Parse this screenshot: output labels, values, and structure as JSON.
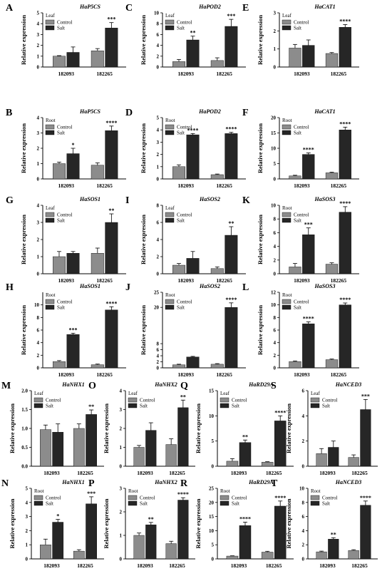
{
  "colors": {
    "control": "#8c8c8c",
    "salt": "#262626",
    "axis": "#000000"
  },
  "chart_data": [
    {
      "letter": "A",
      "type": "bar",
      "title": "HaP5CS",
      "tissue": "Leaf",
      "categories": [
        "182093",
        "182265"
      ],
      "ylabel": "Relative expression",
      "ylim": [
        0,
        5
      ],
      "yticks": [
        0,
        1,
        2,
        3,
        4,
        5
      ],
      "series": [
        {
          "name": "Control",
          "values": [
            1.0,
            1.5
          ],
          "errors": [
            0.05,
            0.2
          ]
        },
        {
          "name": "Salt",
          "values": [
            1.35,
            3.6
          ],
          "errors": [
            0.5,
            0.5
          ]
        }
      ],
      "sig": [
        "",
        "***"
      ]
    },
    {
      "letter": "C",
      "type": "bar",
      "title": "HaPOD2",
      "tissue": "Leaf",
      "categories": [
        "182093",
        "182265"
      ],
      "ylabel": "Relative expression",
      "ylim": [
        0,
        10
      ],
      "yticks": [
        0,
        2,
        4,
        6,
        8,
        10
      ],
      "series": [
        {
          "name": "Control",
          "values": [
            1.0,
            1.2
          ],
          "errors": [
            0.4,
            0.5
          ]
        },
        {
          "name": "Salt",
          "values": [
            5.0,
            7.5
          ],
          "errors": [
            0.7,
            1.3
          ]
        }
      ],
      "sig": [
        "**",
        "***"
      ]
    },
    {
      "letter": "E",
      "type": "bar",
      "title": "HaCAT1",
      "tissue": "Leaf",
      "categories": [
        "182093",
        "182265"
      ],
      "ylabel": "Relative expression",
      "ylim": [
        0,
        3
      ],
      "yticks": [
        0,
        1,
        2,
        3
      ],
      "series": [
        {
          "name": "Control",
          "values": [
            1.05,
            0.75
          ],
          "errors": [
            0.2,
            0.05
          ]
        },
        {
          "name": "Salt",
          "values": [
            1.2,
            2.2
          ],
          "errors": [
            0.3,
            0.15
          ]
        }
      ],
      "sig": [
        "",
        "****"
      ]
    },
    {
      "letter": "B",
      "type": "bar",
      "title": "HaP5CS",
      "tissue": "Root",
      "categories": [
        "182093",
        "182265"
      ],
      "ylabel": "Relative expression",
      "ylim": [
        0,
        4
      ],
      "yticks": [
        0,
        1,
        2,
        3,
        4
      ],
      "series": [
        {
          "name": "Control",
          "values": [
            1.0,
            0.9
          ],
          "errors": [
            0.1,
            0.15
          ]
        },
        {
          "name": "Salt",
          "values": [
            1.65,
            3.15
          ],
          "errors": [
            0.35,
            0.3
          ]
        }
      ],
      "sig": [
        "*",
        "****"
      ]
    },
    {
      "letter": "D",
      "type": "bar",
      "title": "HaPOD2",
      "tissue": "Root",
      "categories": [
        "182093",
        "182265"
      ],
      "ylabel": "Relative expression",
      "ylim": [
        0,
        5
      ],
      "yticks": [
        0,
        1,
        2,
        3,
        4,
        5
      ],
      "series": [
        {
          "name": "Control",
          "values": [
            1.0,
            0.35
          ],
          "errors": [
            0.15,
            0.05
          ]
        },
        {
          "name": "Salt",
          "values": [
            3.6,
            3.7
          ],
          "errors": [
            0.1,
            0.1
          ]
        }
      ],
      "sig": [
        "****",
        "****"
      ]
    },
    {
      "letter": "F",
      "type": "bar",
      "title": "HaCAT1",
      "tissue": "Root",
      "categories": [
        "182093",
        "182265"
      ],
      "ylabel": "Relative expression",
      "ylim": [
        0,
        20
      ],
      "yticks": [
        0,
        5,
        10,
        15,
        20
      ],
      "series": [
        {
          "name": "Control",
          "values": [
            1.0,
            2.0
          ],
          "errors": [
            0.2,
            0.2
          ]
        },
        {
          "name": "Salt",
          "values": [
            8.0,
            16.0
          ],
          "errors": [
            0.5,
            0.9
          ]
        }
      ],
      "sig": [
        "****",
        "****"
      ]
    },
    {
      "letter": "G",
      "type": "bar",
      "title": "HaSOS1",
      "tissue": "Leaf",
      "categories": [
        "182093",
        "182265"
      ],
      "ylabel": "Relative expression",
      "ylim": [
        0,
        4
      ],
      "yticks": [
        0,
        1,
        2,
        3,
        4
      ],
      "series": [
        {
          "name": "Control",
          "values": [
            1.0,
            1.2
          ],
          "errors": [
            0.3,
            0.3
          ]
        },
        {
          "name": "Salt",
          "values": [
            1.2,
            3.0
          ],
          "errors": [
            0.1,
            0.5
          ]
        }
      ],
      "sig": [
        "",
        "**"
      ]
    },
    {
      "letter": "I",
      "type": "bar",
      "title": "HaSOS2",
      "tissue": "Leaf",
      "categories": [
        "182093",
        "182265"
      ],
      "ylabel": "Relative expression",
      "ylim": [
        0,
        8
      ],
      "yticks": [
        0,
        2,
        4,
        6,
        8
      ],
      "series": [
        {
          "name": "Control",
          "values": [
            1.0,
            0.6
          ],
          "errors": [
            0.2,
            0.2
          ]
        },
        {
          "name": "Salt",
          "values": [
            1.8,
            4.5
          ],
          "errors": [
            0.8,
            1.0
          ]
        }
      ],
      "sig": [
        "",
        "**"
      ]
    },
    {
      "letter": "K",
      "type": "bar",
      "title": "HaSOS3",
      "tissue": "Root",
      "categories": [
        "182093",
        "182265"
      ],
      "ylabel": "Relative expression",
      "ylim": [
        0,
        10
      ],
      "yticks": [
        0,
        2,
        4,
        6,
        8,
        10
      ],
      "series": [
        {
          "name": "Control",
          "values": [
            1.0,
            1.4
          ],
          "errors": [
            0.5,
            0.2
          ]
        },
        {
          "name": "Salt",
          "values": [
            5.7,
            9.0
          ],
          "errors": [
            1.0,
            0.8
          ]
        }
      ],
      "sig": [
        "***",
        "****"
      ]
    },
    {
      "letter": "H",
      "type": "bar",
      "title": "HaSOS1",
      "tissue": "Root",
      "categories": [
        "182093",
        "182265"
      ],
      "ylabel": "Relative expression",
      "ylim": [
        0,
        12
      ],
      "yticks": [
        0,
        2,
        4,
        6,
        8,
        10
      ],
      "series": [
        {
          "name": "Control",
          "values": [
            1.0,
            0.5
          ],
          "errors": [
            0.15,
            0.1
          ]
        },
        {
          "name": "Salt",
          "values": [
            5.3,
            9.2
          ],
          "errors": [
            0.2,
            0.5
          ]
        }
      ],
      "sig": [
        "***",
        "****"
      ]
    },
    {
      "letter": "J",
      "type": "bar",
      "title": "HaSOS2",
      "tissue": "Root",
      "categories": [
        "182093",
        "182265"
      ],
      "ylabel": "Relative expression",
      "ylim": [
        0,
        25
      ],
      "yticks": [
        0,
        2,
        4,
        6,
        8,
        20,
        25
      ],
      "series": [
        {
          "name": "Control",
          "values": [
            1.0,
            1.2
          ],
          "errors": [
            0.2,
            0.2
          ]
        },
        {
          "name": "Salt",
          "values": [
            3.6,
            20.0
          ],
          "errors": [
            0.2,
            1.5
          ]
        }
      ],
      "sig": [
        "",
        "****"
      ]
    },
    {
      "letter": "L",
      "type": "bar",
      "title": "HaSOS3",
      "tissue": "Root",
      "categories": [
        "182093",
        "182265"
      ],
      "ylabel": "Relative expression",
      "ylim": [
        0,
        12
      ],
      "yticks": [
        0,
        2,
        4,
        6,
        8,
        10,
        12
      ],
      "series": [
        {
          "name": "Control",
          "values": [
            1.0,
            1.3
          ],
          "errors": [
            0.1,
            0.1
          ]
        },
        {
          "name": "Salt",
          "values": [
            7.0,
            10.0
          ],
          "errors": [
            0.3,
            0.3
          ]
        }
      ],
      "sig": [
        "****",
        "****"
      ]
    },
    {
      "letter": "M",
      "type": "bar",
      "title": "HaNHX1",
      "tissue": "Leaf",
      "categories": [
        "182093",
        "182265"
      ],
      "ylabel": "Relative expression",
      "ylim": [
        0,
        2.0
      ],
      "yticks": [
        0.0,
        0.5,
        1.0,
        1.5,
        2.0
      ],
      "series": [
        {
          "name": "Control",
          "values": [
            0.97,
            1.0
          ],
          "errors": [
            0.12,
            0.12
          ]
        },
        {
          "name": "Salt",
          "values": [
            0.9,
            1.37
          ],
          "errors": [
            0.22,
            0.12
          ]
        }
      ],
      "sig": [
        "",
        "**"
      ]
    },
    {
      "letter": "O",
      "type": "bar",
      "title": "HaNHX2",
      "tissue": "Leaf",
      "categories": [
        "182093",
        "182265"
      ],
      "ylabel": "Relative expression",
      "ylim": [
        0,
        4
      ],
      "yticks": [
        0,
        1,
        2,
        3,
        4
      ],
      "series": [
        {
          "name": "Control",
          "values": [
            1.0,
            1.15
          ],
          "errors": [
            0.1,
            0.3
          ]
        },
        {
          "name": "Salt",
          "values": [
            1.9,
            3.1
          ],
          "errors": [
            0.4,
            0.4
          ]
        }
      ],
      "sig": [
        "",
        "**"
      ]
    },
    {
      "letter": "Q",
      "type": "bar",
      "title": "HaRD29A",
      "tissue": "Leaf",
      "categories": [
        "182093",
        "182265"
      ],
      "ylabel": "Relative expression",
      "ylim": [
        0,
        15
      ],
      "yticks": [
        0,
        5,
        10,
        15
      ],
      "series": [
        {
          "name": "Control",
          "values": [
            1.0,
            0.8
          ],
          "errors": [
            0.5,
            0.1
          ]
        },
        {
          "name": "Salt",
          "values": [
            4.7,
            9.0
          ],
          "errors": [
            0.5,
            1.0
          ]
        }
      ],
      "sig": [
        "**",
        "****"
      ]
    },
    {
      "letter": "S",
      "type": "bar",
      "title": "HaNCED3",
      "tissue": "Leaf",
      "categories": [
        "182093",
        "182265"
      ],
      "ylabel": "Relative expression",
      "ylim": [
        0,
        6
      ],
      "yticks": [
        0,
        2,
        4,
        6
      ],
      "series": [
        {
          "name": "Control",
          "values": [
            1.0,
            0.7
          ],
          "errors": [
            0.4,
            0.2
          ]
        },
        {
          "name": "Salt",
          "values": [
            1.5,
            4.5
          ],
          "errors": [
            0.5,
            0.8
          ]
        }
      ],
      "sig": [
        "",
        "***"
      ]
    },
    {
      "letter": "N",
      "type": "bar",
      "title": "HaNHX1",
      "tissue": "Root",
      "categories": [
        "182093",
        "182265"
      ],
      "ylabel": "Relative expression",
      "ylim": [
        0,
        5
      ],
      "yticks": [
        0,
        1,
        2,
        3,
        4,
        5
      ],
      "series": [
        {
          "name": "Control",
          "values": [
            1.0,
            0.55
          ],
          "errors": [
            0.4,
            0.1
          ]
        },
        {
          "name": "Salt",
          "values": [
            2.6,
            3.9
          ],
          "errors": [
            0.2,
            0.5
          ]
        }
      ],
      "sig": [
        "*",
        "***"
      ]
    },
    {
      "letter": "P",
      "type": "bar",
      "title": "HaNHX2",
      "tissue": "Root",
      "categories": [
        "182093",
        "182265"
      ],
      "ylabel": "Relative expression",
      "ylim": [
        0,
        3
      ],
      "yticks": [
        0,
        1,
        2,
        3
      ],
      "series": [
        {
          "name": "Control",
          "values": [
            1.0,
            0.65
          ],
          "errors": [
            0.1,
            0.1
          ]
        },
        {
          "name": "Salt",
          "values": [
            1.45,
            2.5
          ],
          "errors": [
            0.1,
            0.1
          ]
        }
      ],
      "sig": [
        "**",
        "****"
      ]
    },
    {
      "letter": "R",
      "type": "bar",
      "title": "HaRD29A",
      "tissue": "Root",
      "categories": [
        "182093",
        "182265"
      ],
      "ylabel": "Relative expression",
      "ylim": [
        0,
        25
      ],
      "yticks": [
        0,
        5,
        10,
        15,
        20,
        25
      ],
      "series": [
        {
          "name": "Control",
          "values": [
            1.0,
            2.4
          ],
          "errors": [
            0.1,
            0.3
          ]
        },
        {
          "name": "Salt",
          "values": [
            11.8,
            18.7
          ],
          "errors": [
            1.2,
            1.8
          ]
        }
      ],
      "sig": [
        "****",
        "****"
      ]
    },
    {
      "letter": "T",
      "type": "bar",
      "title": "HaNCED3",
      "tissue": "Root",
      "categories": [
        "182093",
        "182265"
      ],
      "ylabel": "Relative expression",
      "ylim": [
        0,
        10
      ],
      "yticks": [
        0,
        2,
        4,
        6,
        8,
        10
      ],
      "series": [
        {
          "name": "Control",
          "values": [
            1.0,
            1.2
          ],
          "errors": [
            0.1,
            0.1
          ]
        },
        {
          "name": "Salt",
          "values": [
            2.8,
            7.6
          ],
          "errors": [
            0.2,
            0.6
          ]
        }
      ],
      "sig": [
        "**",
        "****"
      ]
    }
  ]
}
